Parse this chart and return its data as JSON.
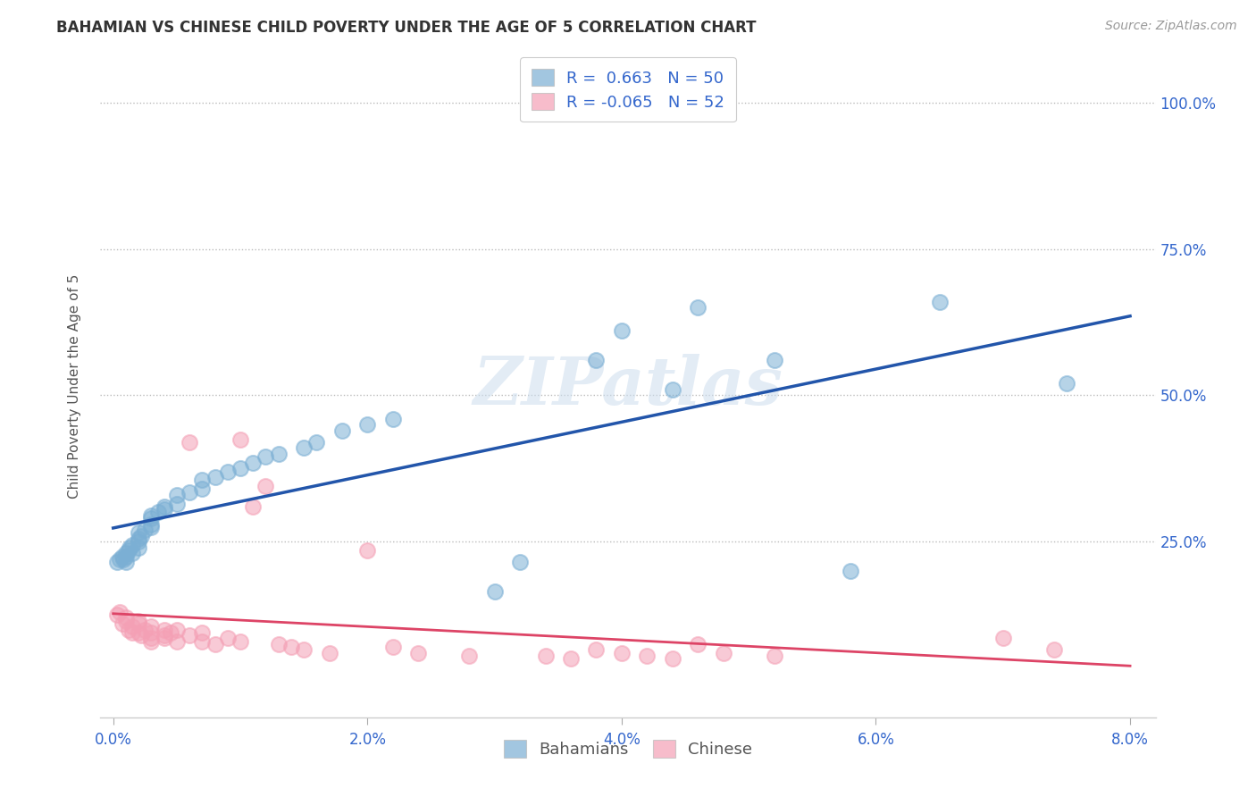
{
  "title": "BAHAMIAN VS CHINESE CHILD POVERTY UNDER THE AGE OF 5 CORRELATION CHART",
  "source": "Source: ZipAtlas.com",
  "ylabel": "Child Poverty Under the Age of 5",
  "xlim": [
    -0.001,
    0.082
  ],
  "ylim": [
    -0.05,
    1.08
  ],
  "xtick_labels": [
    "0.0%",
    "2.0%",
    "4.0%",
    "6.0%",
    "8.0%"
  ],
  "xtick_positions": [
    0.0,
    0.02,
    0.04,
    0.06,
    0.08
  ],
  "ytick_labels": [
    "25.0%",
    "50.0%",
    "75.0%",
    "100.0%"
  ],
  "ytick_positions": [
    0.25,
    0.5,
    0.75,
    1.0
  ],
  "legend_line1": "R =  0.663   N = 50",
  "legend_line2": "R = -0.065   N = 52",
  "blue_color": "#7BAFD4",
  "pink_color": "#F4A0B5",
  "line_blue": "#2255AA",
  "line_pink": "#DD4466",
  "watermark": "ZIPatlas",
  "bahamians_x": [
    0.0003,
    0.0005,
    0.0007,
    0.0008,
    0.001,
    0.001,
    0.001,
    0.0012,
    0.0013,
    0.0015,
    0.0015,
    0.002,
    0.002,
    0.002,
    0.002,
    0.0022,
    0.0025,
    0.003,
    0.003,
    0.003,
    0.003,
    0.0035,
    0.004,
    0.004,
    0.005,
    0.005,
    0.006,
    0.007,
    0.007,
    0.008,
    0.009,
    0.01,
    0.011,
    0.012,
    0.013,
    0.015,
    0.016,
    0.018,
    0.02,
    0.022,
    0.03,
    0.032,
    0.038,
    0.04,
    0.044,
    0.046,
    0.052,
    0.058,
    0.065,
    0.075
  ],
  "bahamians_y": [
    0.215,
    0.22,
    0.225,
    0.22,
    0.215,
    0.225,
    0.23,
    0.235,
    0.24,
    0.23,
    0.245,
    0.24,
    0.25,
    0.255,
    0.265,
    0.26,
    0.27,
    0.275,
    0.28,
    0.29,
    0.295,
    0.3,
    0.305,
    0.31,
    0.315,
    0.33,
    0.335,
    0.34,
    0.355,
    0.36,
    0.37,
    0.375,
    0.385,
    0.395,
    0.4,
    0.41,
    0.42,
    0.44,
    0.45,
    0.46,
    0.165,
    0.215,
    0.56,
    0.61,
    0.51,
    0.65,
    0.56,
    0.2,
    0.66,
    0.52
  ],
  "chinese_x": [
    0.0003,
    0.0005,
    0.0007,
    0.001,
    0.001,
    0.0012,
    0.0015,
    0.0015,
    0.002,
    0.002,
    0.002,
    0.0022,
    0.0025,
    0.003,
    0.003,
    0.003,
    0.003,
    0.004,
    0.004,
    0.004,
    0.0045,
    0.005,
    0.005,
    0.006,
    0.006,
    0.007,
    0.007,
    0.008,
    0.009,
    0.01,
    0.01,
    0.011,
    0.012,
    0.013,
    0.014,
    0.015,
    0.017,
    0.02,
    0.022,
    0.024,
    0.028,
    0.034,
    0.036,
    0.038,
    0.04,
    0.042,
    0.044,
    0.046,
    0.048,
    0.052,
    0.07,
    0.074
  ],
  "chinese_y": [
    0.125,
    0.13,
    0.11,
    0.115,
    0.12,
    0.1,
    0.095,
    0.105,
    0.11,
    0.115,
    0.095,
    0.09,
    0.1,
    0.105,
    0.095,
    0.085,
    0.08,
    0.1,
    0.09,
    0.085,
    0.095,
    0.1,
    0.08,
    0.09,
    0.42,
    0.095,
    0.08,
    0.075,
    0.085,
    0.08,
    0.425,
    0.31,
    0.345,
    0.075,
    0.07,
    0.065,
    0.06,
    0.235,
    0.07,
    0.06,
    0.055,
    0.055,
    0.05,
    0.065,
    0.06,
    0.055,
    0.05,
    0.075,
    0.06,
    0.055,
    0.085,
    0.065
  ]
}
